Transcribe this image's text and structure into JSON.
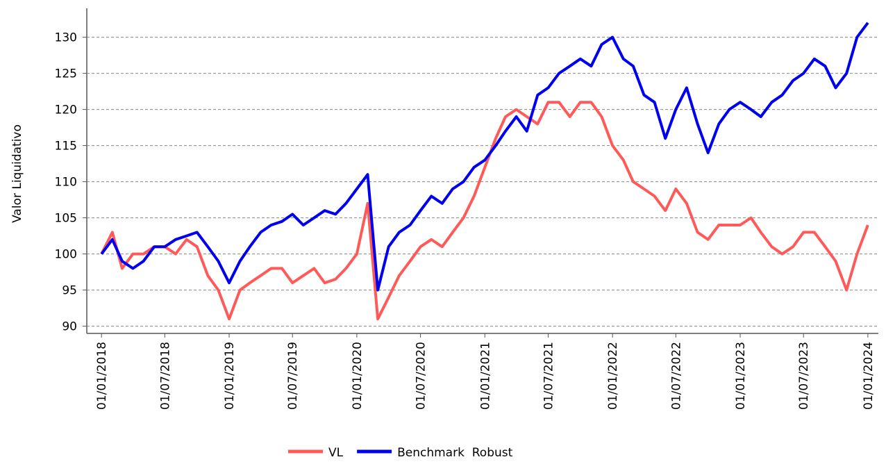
{
  "chart_data": {
    "type": "line",
    "y_label": "Valor Liquidativo",
    "x": [
      "01/01/2018",
      "01/02/2018",
      "01/03/2018",
      "01/04/2018",
      "01/05/2018",
      "01/06/2018",
      "01/07/2018",
      "01/08/2018",
      "01/09/2018",
      "01/10/2018",
      "01/11/2018",
      "01/12/2018",
      "01/01/2019",
      "01/02/2019",
      "01/03/2019",
      "01/04/2019",
      "01/05/2019",
      "01/06/2019",
      "01/07/2019",
      "01/08/2019",
      "01/09/2019",
      "01/10/2019",
      "01/11/2019",
      "01/12/2019",
      "01/01/2020",
      "01/02/2020",
      "01/03/2020",
      "01/04/2020",
      "01/05/2020",
      "01/06/2020",
      "01/07/2020",
      "01/08/2020",
      "01/09/2020",
      "01/10/2020",
      "01/11/2020",
      "01/12/2020",
      "01/01/2021",
      "01/02/2021",
      "01/03/2021",
      "01/04/2021",
      "01/05/2021",
      "01/06/2021",
      "01/07/2021",
      "01/08/2021",
      "01/09/2021",
      "01/10/2021",
      "01/11/2021",
      "01/12/2021",
      "01/01/2022",
      "01/02/2022",
      "01/03/2022",
      "01/04/2022",
      "01/05/2022",
      "01/06/2022",
      "01/07/2022",
      "01/08/2022",
      "01/09/2022",
      "01/10/2022",
      "01/11/2022",
      "01/12/2022",
      "01/01/2023",
      "01/02/2023",
      "01/03/2023",
      "01/04/2023",
      "01/05/2023",
      "01/06/2023",
      "01/07/2023",
      "01/08/2023",
      "01/09/2023",
      "01/10/2023",
      "01/11/2023",
      "01/12/2023",
      "01/01/2024"
    ],
    "series": [
      {
        "name": "VL",
        "color": "#ff5a5a",
        "values": [
          100,
          103,
          98,
          100,
          100,
          101,
          101,
          100,
          102,
          101,
          97,
          95,
          91,
          95,
          96,
          97,
          98,
          98,
          96,
          97,
          98,
          96,
          96.5,
          98,
          100,
          107,
          91,
          94,
          97,
          99,
          101,
          102,
          101,
          103,
          105,
          108,
          112,
          116,
          119,
          120,
          119,
          118,
          121,
          121,
          119,
          121,
          121,
          119,
          115,
          113,
          110,
          109,
          108,
          106,
          109,
          107,
          103,
          102,
          104,
          104,
          104,
          105,
          103,
          101,
          100,
          101,
          103,
          103,
          101,
          99,
          95,
          100,
          104
        ]
      },
      {
        "name": "Benchmark  Robust",
        "color": "#0000ee",
        "values": [
          100,
          102,
          99,
          98,
          99,
          101,
          101,
          102,
          102.5,
          103,
          101,
          99,
          96,
          99,
          101,
          103,
          104,
          104.5,
          105.5,
          104,
          105,
          106,
          105.5,
          107,
          109,
          111,
          95,
          101,
          103,
          104,
          106,
          108,
          107,
          109,
          110,
          112,
          113,
          115,
          117,
          119,
          117,
          122,
          123,
          125,
          126,
          127,
          126,
          129,
          130,
          127,
          126,
          122,
          121,
          116,
          120,
          123,
          118,
          114,
          118,
          120,
          121,
          120,
          119,
          121,
          122,
          124,
          125,
          127,
          126,
          123,
          125,
          130,
          132
        ]
      }
    ],
    "xlim": [
      "20/11/2017",
      "31/01/2024"
    ],
    "xticks": [
      "01/01/2018",
      "01/07/2018",
      "01/01/2019",
      "01/07/2019",
      "01/01/2020",
      "01/07/2020",
      "01/01/2021",
      "01/07/2021",
      "01/01/2022",
      "01/07/2022",
      "01/01/2023",
      "01/07/2023",
      "01/01/2024"
    ],
    "ylim": [
      89,
      134
    ],
    "yticks": [
      90,
      95,
      100,
      105,
      110,
      115,
      120,
      125,
      130
    ],
    "grid": true
  }
}
